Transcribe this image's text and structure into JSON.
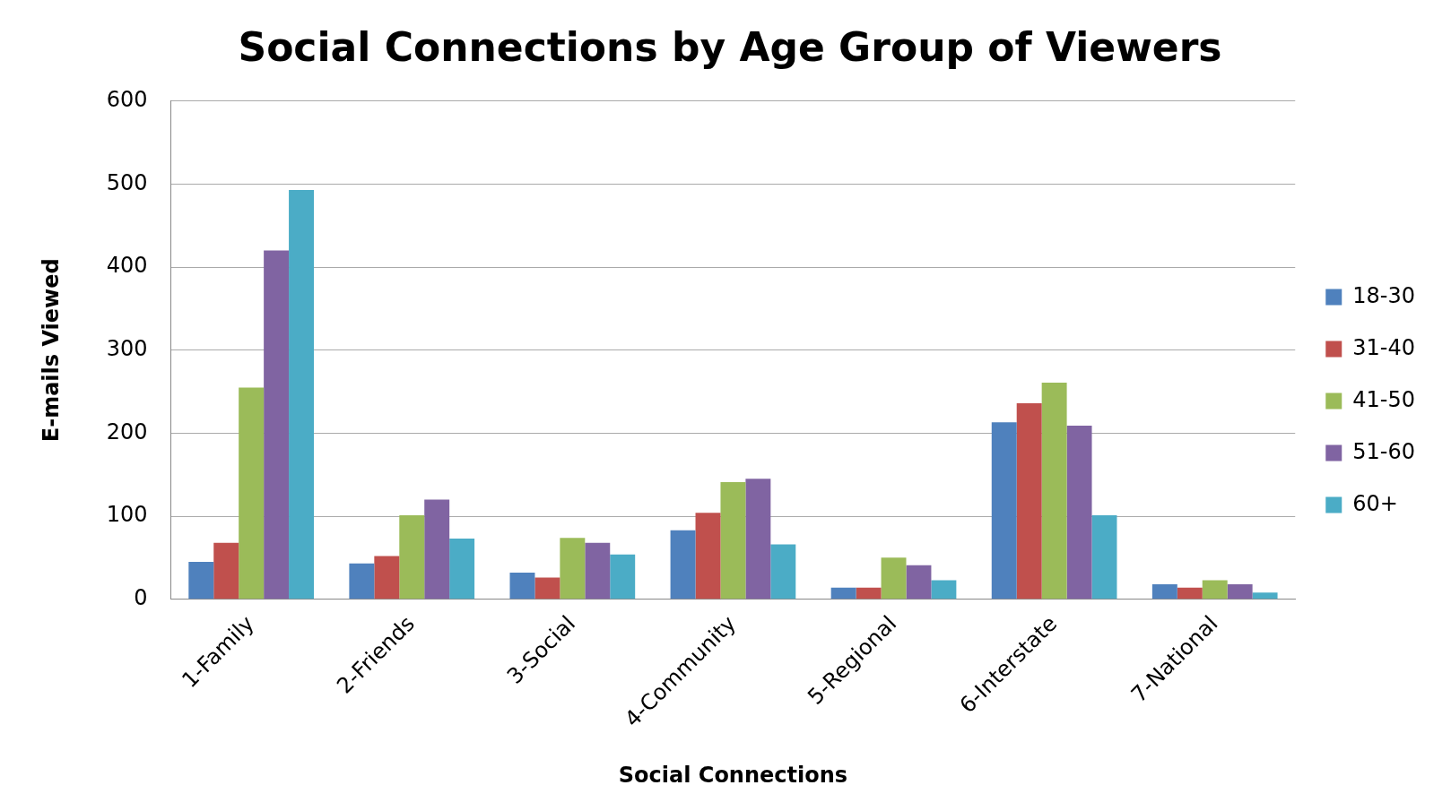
{
  "chart_data": {
    "type": "bar",
    "title": "Social Connections by Age Group of Viewers",
    "xlabel": "Social Connections",
    "ylabel": "E-mails Viewed",
    "categories": [
      "1-Family",
      "2-Friends",
      "3-Social",
      "4-Community",
      "5-Regional",
      "6-Interstate",
      "7-National"
    ],
    "series": [
      {
        "name": "18-30",
        "color": "#4f81bd",
        "values": [
          45,
          43,
          32,
          83,
          14,
          213,
          18
        ]
      },
      {
        "name": "31-40",
        "color": "#c0504d",
        "values": [
          68,
          52,
          26,
          104,
          14,
          236,
          14
        ]
      },
      {
        "name": "41-50",
        "color": "#9bbb59",
        "values": [
          255,
          101,
          74,
          141,
          50,
          261,
          23
        ]
      },
      {
        "name": "51-60",
        "color": "#8064a2",
        "values": [
          420,
          120,
          68,
          145,
          41,
          209,
          18
        ]
      },
      {
        "name": "60+",
        "color": "#4bacc6",
        "values": [
          493,
          73,
          54,
          66,
          23,
          101,
          8
        ]
      }
    ],
    "ylim": [
      0,
      600
    ],
    "yticks": [
      0,
      100,
      200,
      300,
      400,
      500,
      600
    ],
    "grid": "y",
    "legend": "right"
  }
}
